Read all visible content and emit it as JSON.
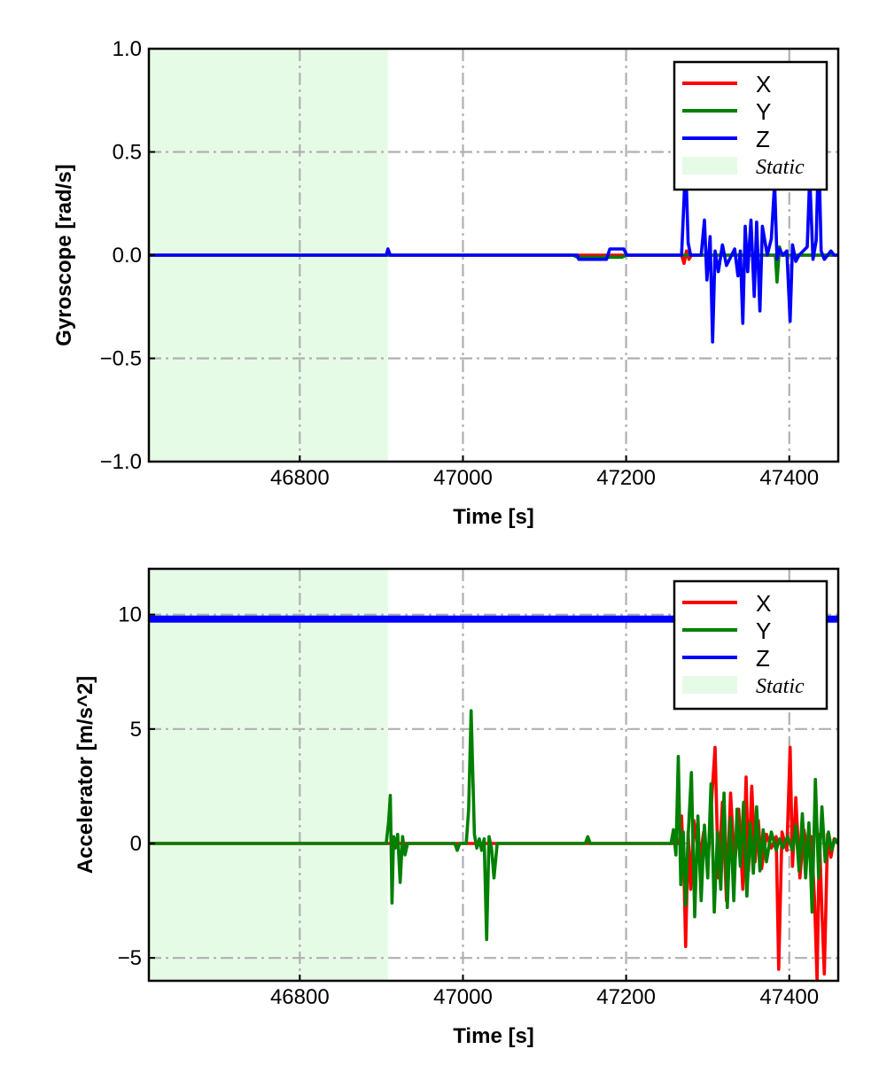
{
  "chart_data": [
    {
      "type": "line",
      "xlabel": "Time [s]",
      "ylabel": "Gyroscope [rad/s]",
      "xlim": [
        46615,
        47460
      ],
      "ylim": [
        -1.0,
        1.0
      ],
      "xticks": [
        46800,
        47000,
        47200,
        47400
      ],
      "xtick_labels": [
        "46800",
        "47000",
        "47200",
        "47400"
      ],
      "yticks": [
        1.0,
        0.5,
        0.0,
        -0.5,
        -1.0
      ],
      "ytick_labels": [
        "1.0",
        "0.5",
        "0.0",
        "−0.5",
        "−1.0"
      ],
      "grid": true,
      "legend_position": "top-right",
      "static_span": [
        46615,
        46908
      ],
      "legend": [
        {
          "label": "X",
          "kind": "line",
          "color": "#ff0000"
        },
        {
          "label": "Y",
          "kind": "line",
          "color": "#008000"
        },
        {
          "label": "Z",
          "kind": "line",
          "color": "#0000ff"
        },
        {
          "label": "Static",
          "kind": "patch",
          "color": "#e6fbe6"
        }
      ],
      "series": [
        {
          "name": "X",
          "color": "#ff0000",
          "x": [
            46615,
            47268,
            47271,
            47274,
            47277,
            47280,
            47460
          ],
          "y": [
            0,
            0,
            -0.04,
            0.02,
            -0.02,
            0,
            0
          ]
        },
        {
          "name": "Y",
          "color": "#008000",
          "x": [
            46615,
            47135,
            47140,
            47195,
            47200,
            47383,
            47385,
            47388,
            47391,
            47460
          ],
          "y": [
            0,
            0,
            -0.01,
            -0.01,
            0,
            0,
            -0.13,
            0.04,
            0,
            0
          ]
        },
        {
          "name": "Z",
          "color": "#0000ff",
          "x": [
            46615,
            46906,
            46908,
            46911,
            47140,
            47142,
            47176,
            47180,
            47197,
            47201,
            47268,
            47273,
            47276,
            47279,
            47283,
            47292,
            47296,
            47299,
            47303,
            47306,
            47309,
            47313,
            47318,
            47323,
            47328,
            47333,
            47337,
            47340,
            47343,
            47346,
            47349,
            47353,
            47357,
            47360,
            47364,
            47367,
            47373,
            47378,
            47382,
            47385,
            47388,
            47392,
            47397,
            47401,
            47404,
            47408,
            47412,
            47422,
            47425,
            47429,
            47433,
            47436,
            47439,
            47443,
            47447,
            47451,
            47455,
            47460
          ],
          "y": [
            0,
            0,
            0.03,
            0,
            0,
            -0.02,
            -0.02,
            0.03,
            0.03,
            0,
            0,
            0.45,
            0.06,
            0,
            0,
            0,
            0.17,
            -0.12,
            0.09,
            -0.42,
            0.02,
            -0.08,
            0.05,
            -0.05,
            -0.01,
            0.03,
            -0.1,
            0.02,
            -0.33,
            0.14,
            -0.08,
            0.17,
            -0.2,
            0.16,
            -0.27,
            0.14,
            0,
            0.08,
            0.35,
            -0.02,
            0.03,
            0,
            0.02,
            -0.32,
            0.05,
            -0.03,
            0,
            0.04,
            0.38,
            -0.02,
            0.07,
            0.53,
            0.02,
            -0.02,
            0,
            0.02,
            0,
            0
          ]
        }
      ]
    },
    {
      "type": "line",
      "xlabel": "Time [s]",
      "ylabel": "Accelerator [m/s^2]",
      "xlim": [
        46615,
        47460
      ],
      "ylim": [
        -6.0,
        12.0
      ],
      "xticks": [
        46800,
        47000,
        47200,
        47400
      ],
      "xtick_labels": [
        "46800",
        "47000",
        "47200",
        "47400"
      ],
      "yticks": [
        10,
        5,
        0,
        -5
      ],
      "ytick_labels": [
        "10",
        "5",
        "0",
        "−5"
      ],
      "grid": true,
      "legend_position": "top-right",
      "static_span": [
        46615,
        46908
      ],
      "legend": [
        {
          "label": "X",
          "kind": "line",
          "color": "#ff0000"
        },
        {
          "label": "Y",
          "kind": "line",
          "color": "#008000"
        },
        {
          "label": "Z",
          "kind": "line",
          "color": "#0000ff"
        },
        {
          "label": "Static",
          "kind": "patch",
          "color": "#e6fbe6"
        }
      ],
      "series": [
        {
          "name": "X",
          "color": "#ff0000",
          "x": [
            46615,
            47265,
            47268,
            47271,
            47273,
            47276,
            47279,
            47283,
            47290,
            47295,
            47300,
            47305,
            47309,
            47313,
            47318,
            47323,
            47328,
            47333,
            47338,
            47343,
            47347,
            47350,
            47354,
            47358,
            47362,
            47366,
            47372,
            47378,
            47384,
            47387,
            47391,
            47397,
            47401,
            47404,
            47408,
            47413,
            47418,
            47423,
            47427,
            47431,
            47434,
            47437,
            47440,
            47443,
            47447,
            47451,
            47455,
            47460
          ],
          "y": [
            0,
            0,
            1.2,
            -1.5,
            -4.5,
            0.5,
            -2.0,
            1.0,
            -0.8,
            0.5,
            -1.0,
            2.0,
            4.2,
            -1.5,
            1.8,
            -2.5,
            2.2,
            -1.0,
            1.5,
            -2.0,
            2.9,
            -1.2,
            2.5,
            -0.8,
            1.0,
            -1.1,
            0.4,
            -0.2,
            0.3,
            -5.5,
            0.5,
            -0.3,
            4.2,
            -1.0,
            2.0,
            -1.5,
            0.6,
            -0.5,
            0.3,
            -2.5,
            -6.0,
            0.4,
            -3.0,
            -5.7,
            0.4,
            -0.6,
            0.2,
            0
          ]
        },
        {
          "name": "Y",
          "color": "#008000",
          "x": [
            46615,
            46906,
            46909,
            46911,
            46913,
            46915,
            46917,
            46920,
            46923,
            46926,
            46929,
            46932,
            46990,
            46993,
            46996,
            47004,
            47007,
            47010,
            47014,
            47017,
            47020,
            47023,
            47026,
            47029,
            47032,
            47035,
            47038,
            47042,
            47150,
            47153,
            47156,
            47255,
            47258,
            47261,
            47264,
            47267,
            47270,
            47273,
            47276,
            47280,
            47284,
            47288,
            47292,
            47296,
            47300,
            47304,
            47308,
            47312,
            47316,
            47320,
            47324,
            47328,
            47332,
            47336,
            47340,
            47344,
            47348,
            47352,
            47356,
            47360,
            47364,
            47368,
            47372,
            47378,
            47384,
            47388,
            47392,
            47398,
            47404,
            47408,
            47412,
            47416,
            47420,
            47424,
            47428,
            47432,
            47436,
            47440,
            47444,
            47448,
            47452,
            47456,
            47460
          ],
          "y": [
            0,
            0,
            1.0,
            2.1,
            -2.6,
            0.3,
            -0.2,
            0.4,
            -1.7,
            0.3,
            -0.5,
            0,
            0,
            -0.3,
            0,
            0,
            1.5,
            5.8,
            0.4,
            -0.2,
            0.2,
            -0.3,
            0.2,
            -4.2,
            0.3,
            -0.2,
            -1.5,
            0,
            0,
            0.3,
            0,
            0,
            0.6,
            -0.5,
            3.8,
            -1.8,
            0.5,
            -2.7,
            0.3,
            3.1,
            -3.2,
            1.2,
            -2.5,
            0.8,
            -1.5,
            2.6,
            -3.0,
            0.5,
            -2.0,
            2.2,
            -2.8,
            1.1,
            -2.5,
            1.5,
            -1.0,
            1.8,
            -2.3,
            0.9,
            -1.3,
            1.6,
            -1.2,
            0.6,
            -0.8,
            0.5,
            -0.3,
            0.2,
            -0.2,
            0.3,
            -0.3,
            0.8,
            -1.2,
            1.3,
            -1.5,
            0.9,
            -3.0,
            2.8,
            -1.5,
            1.6,
            -0.8,
            0.5,
            -0.3,
            0.2,
            0
          ]
        },
        {
          "name": "Z",
          "color": "#0000ff",
          "x": [
            46615,
            47460
          ],
          "y": [
            9.8,
            9.8
          ]
        }
      ]
    }
  ]
}
